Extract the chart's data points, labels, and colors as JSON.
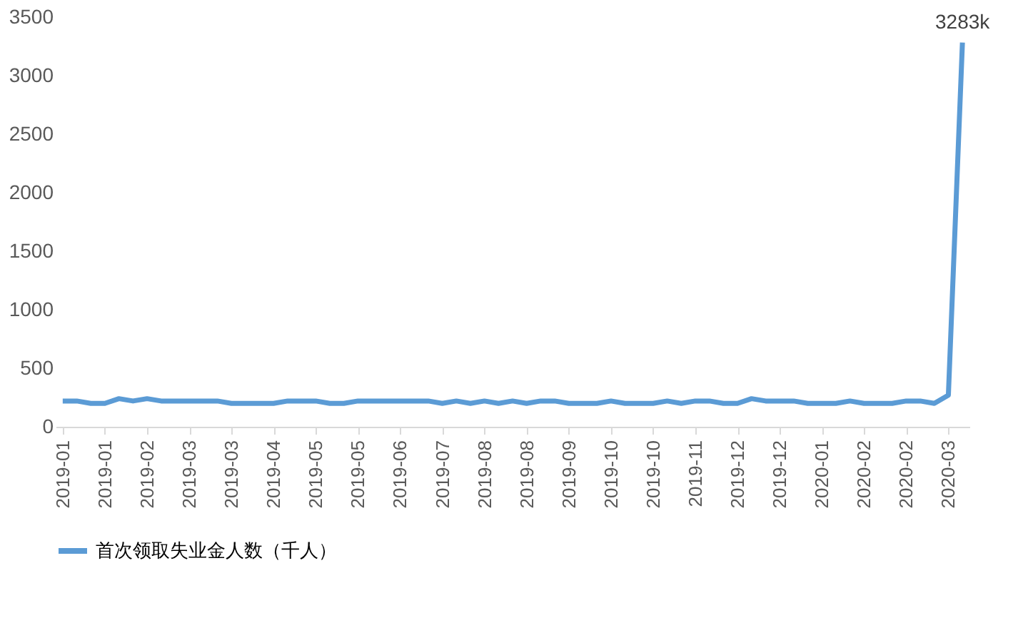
{
  "chart_data": {
    "type": "line",
    "categories": [
      "2019-01",
      null,
      null,
      "2019-01",
      null,
      null,
      "2019-02",
      null,
      null,
      "2019-03",
      null,
      null,
      "2019-03",
      null,
      null,
      "2019-04",
      null,
      null,
      "2019-05",
      null,
      null,
      "2019-05",
      null,
      null,
      "2019-06",
      null,
      null,
      "2019-07",
      null,
      null,
      "2019-08",
      null,
      null,
      "2019-08",
      null,
      null,
      "2019-09",
      null,
      null,
      "2019-10",
      null,
      null,
      "2019-10",
      null,
      null,
      "2019-11",
      null,
      null,
      "2019-12",
      null,
      null,
      "2019-12",
      null,
      null,
      "2020-01",
      null,
      null,
      "2020-02",
      null,
      null,
      "2020-02",
      null,
      null,
      "2020-03",
      null
    ],
    "series": [
      {
        "name": "首次领取失业金人数（千人）",
        "color": "#5b9bd5",
        "values": [
          220,
          220,
          200,
          200,
          240,
          220,
          240,
          220,
          220,
          220,
          220,
          220,
          200,
          200,
          200,
          200,
          220,
          220,
          220,
          200,
          200,
          220,
          220,
          220,
          220,
          220,
          220,
          200,
          220,
          200,
          220,
          200,
          220,
          200,
          220,
          220,
          200,
          200,
          200,
          220,
          200,
          200,
          200,
          220,
          200,
          220,
          220,
          200,
          200,
          240,
          220,
          220,
          220,
          200,
          200,
          200,
          220,
          200,
          200,
          200,
          220,
          220,
          200,
          270,
          3283
        ],
        "value_labels": [
          null,
          null,
          null,
          null,
          null,
          null,
          null,
          null,
          null,
          null,
          null,
          null,
          null,
          null,
          null,
          null,
          null,
          null,
          null,
          null,
          null,
          null,
          null,
          null,
          null,
          null,
          null,
          null,
          null,
          null,
          null,
          null,
          null,
          null,
          null,
          null,
          null,
          null,
          null,
          null,
          null,
          null,
          null,
          null,
          null,
          null,
          null,
          null,
          null,
          null,
          null,
          null,
          null,
          null,
          null,
          null,
          null,
          null,
          null,
          null,
          null,
          null,
          null,
          null,
          "3283k"
        ]
      }
    ],
    "ylim": [
      0,
      3500
    ],
    "yticks": [
      0,
      500,
      1000,
      1500,
      2000,
      2500,
      3000,
      3500
    ],
    "grid": false,
    "legend": "bottom",
    "marker": "none",
    "line_style": "solid"
  }
}
